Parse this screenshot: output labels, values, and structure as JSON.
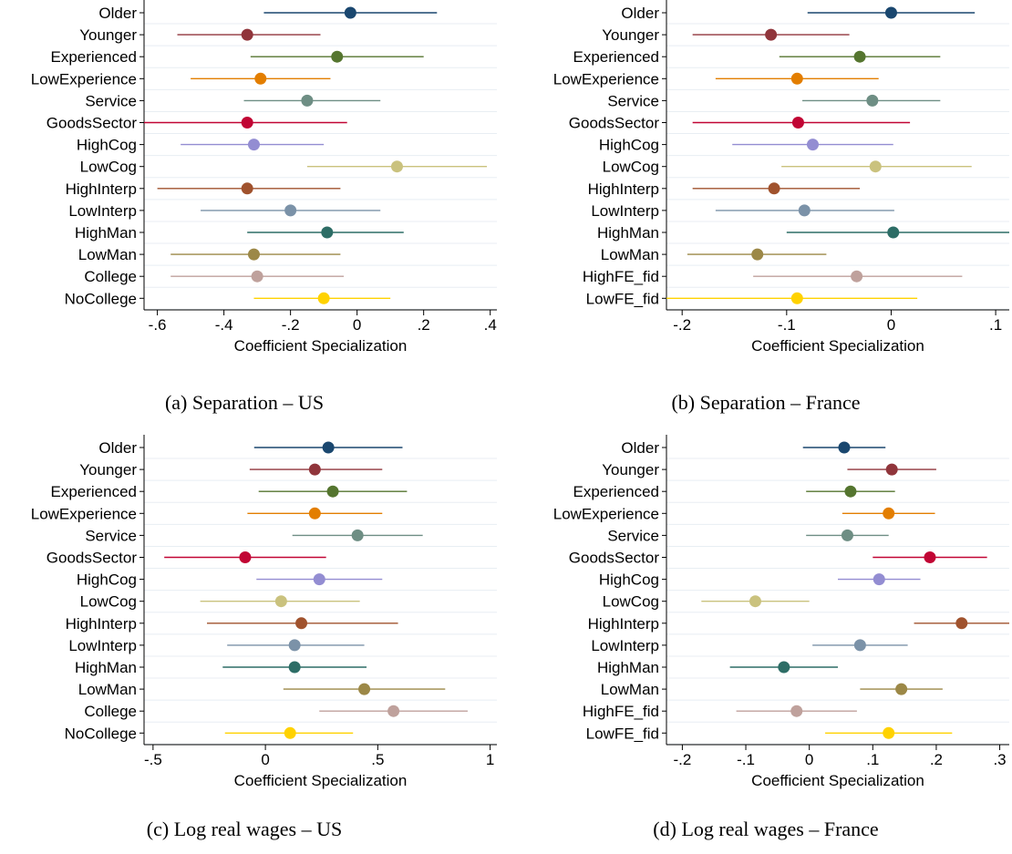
{
  "colors": [
    "#1a476f",
    "#90353b",
    "#55752f",
    "#e37e00",
    "#6e8e84",
    "#c10534",
    "#938dd2",
    "#cac27e",
    "#a0522d",
    "#7b92a8",
    "#2d6d66",
    "#9c8847",
    "#bfa19c",
    "#ffd200"
  ],
  "chart_data": [
    {
      "type": "scatter",
      "caption": "(a) Separation – US",
      "xlabel": "Coefficient Specialization",
      "xlim": [
        -0.64,
        0.42
      ],
      "xticks": [
        -0.6,
        -0.4,
        -0.2,
        0,
        0.2,
        0.4
      ],
      "xtick_labels": [
        "-.6",
        "-.4",
        "-.2",
        "0",
        ".2",
        ".4"
      ],
      "categories": [
        "Older",
        "Younger",
        "Experienced",
        "LowExperience",
        "Service",
        "GoodsSector",
        "HighCog",
        "LowCog",
        "HighInterp",
        "LowInterp",
        "HighMan",
        "LowMan",
        "College",
        "NoCollege"
      ],
      "estimates": [
        -0.02,
        -0.33,
        -0.06,
        -0.29,
        -0.15,
        -0.33,
        -0.31,
        0.12,
        -0.33,
        -0.2,
        -0.09,
        -0.31,
        -0.3,
        -0.1
      ],
      "ci_low": [
        -0.28,
        -0.54,
        -0.32,
        -0.5,
        -0.34,
        -0.64,
        -0.53,
        -0.15,
        -0.6,
        -0.47,
        -0.33,
        -0.56,
        -0.56,
        -0.31
      ],
      "ci_high": [
        0.24,
        -0.11,
        0.2,
        -0.08,
        0.07,
        -0.03,
        -0.1,
        0.39,
        -0.05,
        0.07,
        0.14,
        -0.05,
        -0.04,
        0.1
      ]
    },
    {
      "type": "scatter",
      "caption": "(b) Separation – France",
      "xlabel": "Coefficient Specialization",
      "xlim": [
        -0.215,
        0.113
      ],
      "xticks": [
        -0.2,
        -0.1,
        0,
        0.1
      ],
      "xtick_labels": [
        "-.2",
        "-.1",
        "0",
        ".1"
      ],
      "categories": [
        "Older",
        "Younger",
        "Experienced",
        "LowExperience",
        "Service",
        "GoodsSector",
        "HighCog",
        "LowCog",
        "HighInterp",
        "LowInterp",
        "HighMan",
        "LowMan",
        "HighFE_fid",
        "LowFE_fid"
      ],
      "estimates": [
        0.0,
        -0.115,
        -0.03,
        -0.09,
        -0.018,
        -0.089,
        -0.075,
        -0.015,
        -0.112,
        -0.083,
        0.002,
        -0.128,
        -0.033,
        -0.09
      ],
      "ci_low": [
        -0.08,
        -0.19,
        -0.107,
        -0.168,
        -0.085,
        -0.19,
        -0.152,
        -0.105,
        -0.19,
        -0.168,
        -0.1,
        -0.195,
        -0.132,
        -0.215
      ],
      "ci_high": [
        0.08,
        -0.04,
        0.047,
        -0.012,
        0.047,
        0.018,
        0.002,
        0.077,
        -0.03,
        0.003,
        0.113,
        -0.062,
        0.068,
        0.025
      ]
    },
    {
      "type": "scatter",
      "caption": "(c) Log real wages – US",
      "xlabel": "Coefficient Specialization",
      "xlim": [
        -0.54,
        1.03
      ],
      "xticks": [
        -0.5,
        0,
        0.5,
        1
      ],
      "xtick_labels": [
        "-.5",
        "0",
        ".5",
        "1"
      ],
      "categories": [
        "Older",
        "Younger",
        "Experienced",
        "LowExperience",
        "Service",
        "GoodsSector",
        "HighCog",
        "LowCog",
        "HighInterp",
        "LowInterp",
        "HighMan",
        "LowMan",
        "College",
        "NoCollege"
      ],
      "estimates": [
        0.28,
        0.22,
        0.3,
        0.22,
        0.41,
        -0.09,
        0.24,
        0.07,
        0.16,
        0.13,
        0.13,
        0.44,
        0.57,
        0.11
      ],
      "ci_low": [
        -0.05,
        -0.07,
        -0.03,
        -0.08,
        0.12,
        -0.45,
        -0.04,
        -0.29,
        -0.26,
        -0.17,
        -0.19,
        0.08,
        0.24,
        -0.18
      ],
      "ci_high": [
        0.61,
        0.52,
        0.63,
        0.52,
        0.7,
        0.27,
        0.52,
        0.42,
        0.59,
        0.44,
        0.45,
        0.8,
        0.9,
        0.39
      ]
    },
    {
      "type": "scatter",
      "caption": "(d) Log real wages – France",
      "xlabel": "Coefficient Specialization",
      "xlim": [
        -0.225,
        0.315
      ],
      "xticks": [
        -0.2,
        -0.1,
        0,
        0.1,
        0.2,
        0.3
      ],
      "xtick_labels": [
        "-.2",
        "-.1",
        "0",
        ".1",
        ".2",
        ".3"
      ],
      "categories": [
        "Older",
        "Younger",
        "Experienced",
        "LowExperience",
        "Service",
        "GoodsSector",
        "HighCog",
        "LowCog",
        "HighInterp",
        "LowInterp",
        "HighMan",
        "LowMan",
        "HighFE_fid",
        "LowFE_fid"
      ],
      "estimates": [
        0.055,
        0.13,
        0.065,
        0.125,
        0.06,
        0.19,
        0.11,
        -0.085,
        0.24,
        0.08,
        -0.04,
        0.145,
        -0.02,
        0.125
      ],
      "ci_low": [
        -0.01,
        0.06,
        -0.005,
        0.052,
        -0.005,
        0.1,
        0.045,
        -0.17,
        0.165,
        0.005,
        -0.125,
        0.08,
        -0.115,
        0.025
      ],
      "ci_high": [
        0.12,
        0.2,
        0.135,
        0.198,
        0.125,
        0.28,
        0.175,
        0.0,
        0.315,
        0.155,
        0.045,
        0.21,
        0.075,
        0.225
      ]
    }
  ]
}
